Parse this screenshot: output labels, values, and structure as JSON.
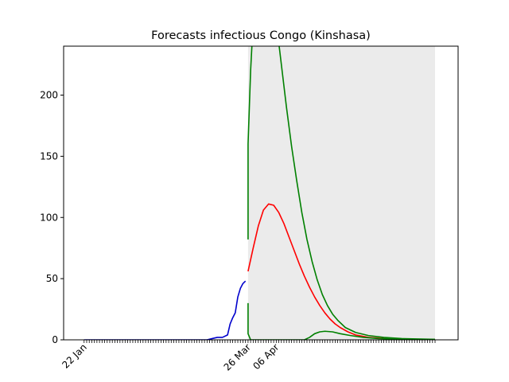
{
  "chart_data": {
    "type": "line",
    "title": "Forecasts infectious Congo (Kinshasa)",
    "xlabel": "",
    "ylabel": "",
    "x_axis": "date",
    "ylim": [
      0,
      240
    ],
    "xlim": [
      "2020-01-14",
      "2020-06-16"
    ],
    "grid": false,
    "x_tick_labels": [
      "22 Jan",
      "26 Mar",
      "06 Apr"
    ],
    "x_tick_dates": [
      "2020-01-22",
      "2020-03-26",
      "2020-04-06"
    ],
    "minor_ticks": "daily",
    "minor_tick_range": [
      "2020-01-22",
      "2020-06-07"
    ],
    "y_ticks": [
      0,
      50,
      100,
      150,
      200
    ],
    "colors": {
      "observed": "#0000cc",
      "forecast": "#ff0000",
      "bounds": "#008000",
      "band": "#ebebeb"
    },
    "band_range": [
      "2020-03-26",
      "2020-06-07"
    ],
    "series": [
      {
        "role": "observed",
        "color": "#0000cc",
        "points": [
          [
            "2020-01-22",
            0
          ],
          [
            "2020-02-15",
            0
          ],
          [
            "2020-03-10",
            0
          ],
          [
            "2020-03-12",
            1
          ],
          [
            "2020-03-14",
            2
          ],
          [
            "2020-03-16",
            2
          ],
          [
            "2020-03-18",
            4
          ],
          [
            "2020-03-19",
            13
          ],
          [
            "2020-03-20",
            18
          ],
          [
            "2020-03-21",
            22
          ],
          [
            "2020-03-22",
            35
          ],
          [
            "2020-03-23",
            42
          ],
          [
            "2020-03-24",
            46
          ],
          [
            "2020-03-25",
            48
          ]
        ]
      },
      {
        "role": "forecast",
        "color": "#ff0000",
        "points": [
          [
            "2020-03-26",
            56
          ],
          [
            "2020-03-28",
            75
          ],
          [
            "2020-03-30",
            93
          ],
          [
            "2020-04-01",
            106
          ],
          [
            "2020-04-03",
            111
          ],
          [
            "2020-04-05",
            110
          ],
          [
            "2020-04-07",
            104
          ],
          [
            "2020-04-09",
            95
          ],
          [
            "2020-04-11",
            84
          ],
          [
            "2020-04-13",
            73
          ],
          [
            "2020-04-15",
            62
          ],
          [
            "2020-04-17",
            52
          ],
          [
            "2020-04-19",
            43
          ],
          [
            "2020-04-21",
            35
          ],
          [
            "2020-04-23",
            28
          ],
          [
            "2020-04-25",
            22
          ],
          [
            "2020-04-27",
            17
          ],
          [
            "2020-04-29",
            13
          ],
          [
            "2020-05-01",
            10
          ],
          [
            "2020-05-04",
            6.5
          ],
          [
            "2020-05-07",
            4
          ],
          [
            "2020-05-12",
            2
          ],
          [
            "2020-05-18",
            1
          ],
          [
            "2020-05-25",
            0.5
          ],
          [
            "2020-06-07",
            0.2
          ]
        ]
      },
      {
        "role": "upper bound",
        "color": "#008000",
        "points": [
          [
            "2020-03-26",
            82
          ],
          [
            "2020-03-26",
            160
          ],
          [
            "2020-03-27",
            220
          ],
          [
            "2020-03-28",
            260
          ],
          [
            "2020-04-06",
            260
          ],
          [
            "2020-04-08",
            225
          ],
          [
            "2020-04-10",
            190
          ],
          [
            "2020-04-12",
            158
          ],
          [
            "2020-04-14",
            130
          ],
          [
            "2020-04-16",
            104
          ],
          [
            "2020-04-18",
            82
          ],
          [
            "2020-04-20",
            64
          ],
          [
            "2020-04-22",
            49
          ],
          [
            "2020-04-24",
            37
          ],
          [
            "2020-04-26",
            28
          ],
          [
            "2020-04-28",
            21
          ],
          [
            "2020-04-30",
            16
          ],
          [
            "2020-05-03",
            10
          ],
          [
            "2020-05-07",
            6
          ],
          [
            "2020-05-12",
            3.5
          ],
          [
            "2020-05-18",
            2
          ],
          [
            "2020-05-25",
            1
          ],
          [
            "2020-06-07",
            0.4
          ]
        ]
      },
      {
        "role": "lower bound",
        "color": "#008000",
        "points": [
          [
            "2020-03-26",
            30
          ],
          [
            "2020-03-26",
            5
          ],
          [
            "2020-03-27",
            0
          ],
          [
            "2020-04-17",
            0
          ],
          [
            "2020-04-19",
            2
          ],
          [
            "2020-04-21",
            5
          ],
          [
            "2020-04-23",
            6.5
          ],
          [
            "2020-04-25",
            7
          ],
          [
            "2020-04-28",
            6.5
          ],
          [
            "2020-05-01",
            5
          ],
          [
            "2020-05-05",
            3.5
          ],
          [
            "2020-05-10",
            2
          ],
          [
            "2020-05-16",
            1
          ],
          [
            "2020-05-25",
            0.5
          ],
          [
            "2020-06-07",
            0.2
          ]
        ]
      }
    ]
  }
}
